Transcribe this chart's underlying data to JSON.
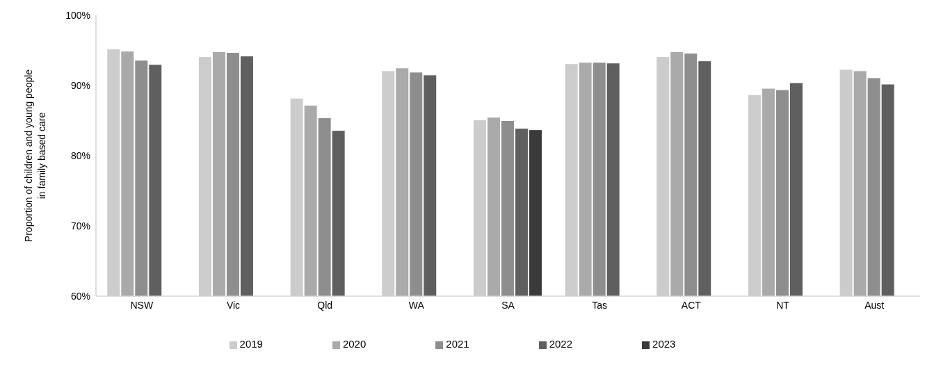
{
  "chart_data": {
    "type": "bar",
    "ylabel": "Proportion of children and young people in family based care",
    "categories": [
      "NSW",
      "Vic",
      "Qld",
      "WA",
      "SA",
      "Tas",
      "ACT",
      "NT",
      "Aust"
    ],
    "series": [
      {
        "name": "2019",
        "color": "#cccccc",
        "values": [
          95.2,
          94.1,
          88.2,
          92.1,
          85.1,
          93.1,
          94.1,
          88.7,
          92.3
        ]
      },
      {
        "name": "2020",
        "color": "#aaaaaa",
        "values": [
          94.9,
          94.8,
          87.2,
          92.5,
          85.5,
          93.3,
          94.8,
          89.6,
          92.1
        ]
      },
      {
        "name": "2021",
        "color": "#8e8e8e",
        "values": [
          93.6,
          94.7,
          85.4,
          91.9,
          85.0,
          93.3,
          94.6,
          89.4,
          91.1
        ]
      },
      {
        "name": "2022",
        "color": "#5f5f5f",
        "values": [
          93.0,
          94.2,
          83.6,
          91.5,
          83.9,
          93.2,
          93.5,
          90.4,
          90.2
        ]
      },
      {
        "name": "2023",
        "color": "#3a3a3a",
        "values": [
          null,
          null,
          null,
          null,
          83.7,
          null,
          null,
          null,
          null
        ]
      }
    ],
    "ylim": [
      60,
      100
    ],
    "yticks": [
      {
        "value": 60,
        "label": "60%"
      },
      {
        "value": 70,
        "label": "70%"
      },
      {
        "value": 80,
        "label": "80%"
      },
      {
        "value": 90,
        "label": "90%"
      },
      {
        "value": 100,
        "label": "100%"
      }
    ],
    "grid": false,
    "legend": "bottom"
  }
}
